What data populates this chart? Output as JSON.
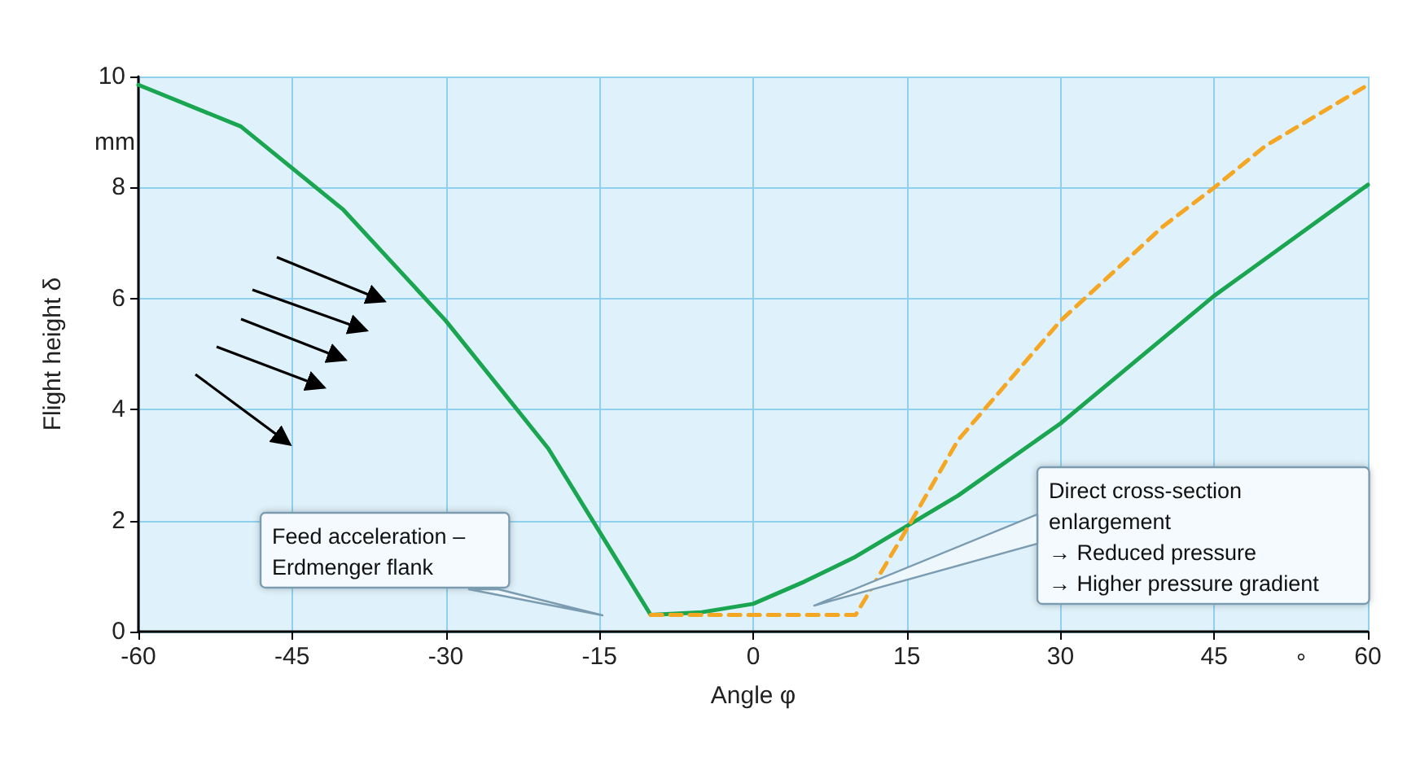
{
  "chart_data": {
    "type": "line",
    "xlabel": "Angle φ",
    "ylabel": "Flight height δ",
    "xlim": [
      -60,
      60
    ],
    "xticks": [
      -60,
      -45,
      -30,
      -15,
      0,
      15,
      30,
      45,
      60
    ],
    "ylim": [
      0,
      10
    ],
    "yticks": [
      0,
      2,
      4,
      6,
      8,
      10
    ],
    "grid": true,
    "marker": "none",
    "series": [
      {
        "color": "#1aa550",
        "line_style": "solid",
        "x": [
          -60,
          -50,
          -40,
          -30,
          -20,
          -10,
          -5,
          0,
          5,
          10,
          15,
          20,
          30,
          45,
          60
        ],
        "values": [
          9.85,
          9.1,
          7.6,
          5.6,
          3.3,
          0.3,
          0.35,
          0.5,
          0.9,
          1.35,
          1.9,
          2.45,
          3.75,
          6.05,
          8.05
        ]
      },
      {
        "color": "#f5a623",
        "line_style": "dashed",
        "x": [
          -10,
          10,
          15,
          20,
          30,
          40,
          45,
          50,
          60
        ],
        "values": [
          0.3,
          0.3,
          1.85,
          3.45,
          5.6,
          7.3,
          8.0,
          8.75,
          9.85
        ]
      }
    ],
    "annotations": [
      "Feed acceleration –\nErdmenger flank",
      "Direct cross-section\nenlargement\n→ Reduced pressure\n→ Higher pressure gradient",
      "mm",
      "°"
    ]
  }
}
